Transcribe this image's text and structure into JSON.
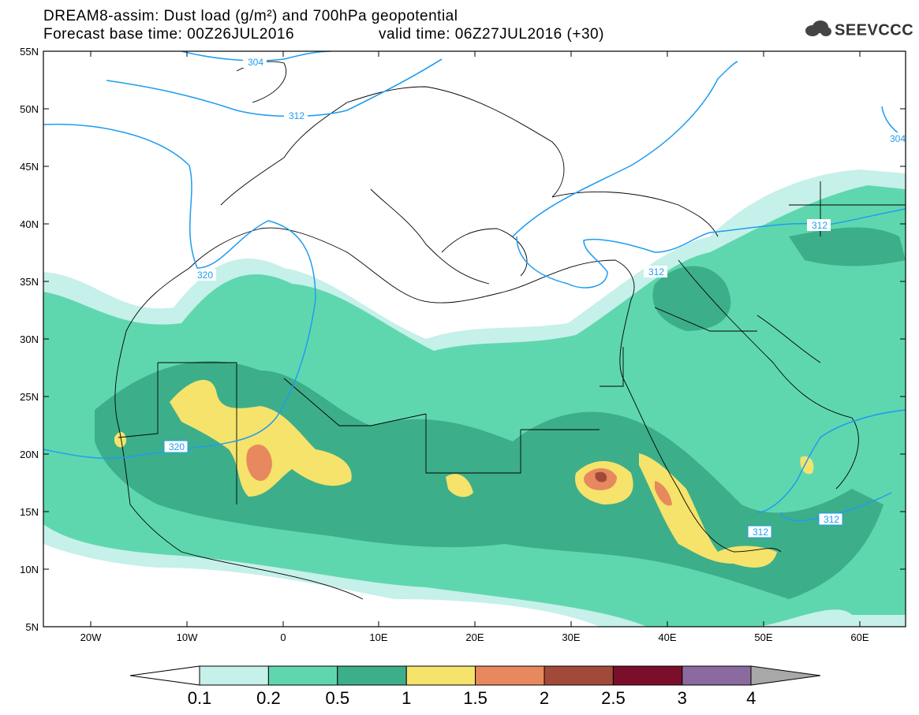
{
  "header": {
    "title_line1": "DREAM8-assim: Dust load (g/m²) and 700hPa geopotential",
    "base_time": "Forecast base time: 00Z26JUL2016",
    "valid_time": "valid time: 06Z27JUL2016 (+30)",
    "logo_text": "SEEVCCC"
  },
  "axes": {
    "lat_labels": [
      "55N",
      "50N",
      "45N",
      "40N",
      "35N",
      "30N",
      "25N",
      "20N",
      "15N",
      "10N",
      "5N"
    ],
    "lon_labels": [
      "20W",
      "10W",
      "0",
      "10E",
      "20E",
      "30E",
      "40E",
      "50E",
      "60E"
    ]
  },
  "contour_labels": [
    "304",
    "312",
    "320",
    "320",
    "312",
    "312",
    "312",
    "312",
    "304"
  ],
  "legend": {
    "values": [
      "0.1",
      "0.2",
      "0.5",
      "1",
      "1.5",
      "2",
      "2.5",
      "3",
      "4"
    ],
    "colors": [
      "#c6f0ea",
      "#5fd7ae",
      "#3dae8a",
      "#f5e36b",
      "#e8885e",
      "#a24a3a",
      "#7a0e2b",
      "#8a6a9f",
      "#a8a8a8"
    ]
  }
}
